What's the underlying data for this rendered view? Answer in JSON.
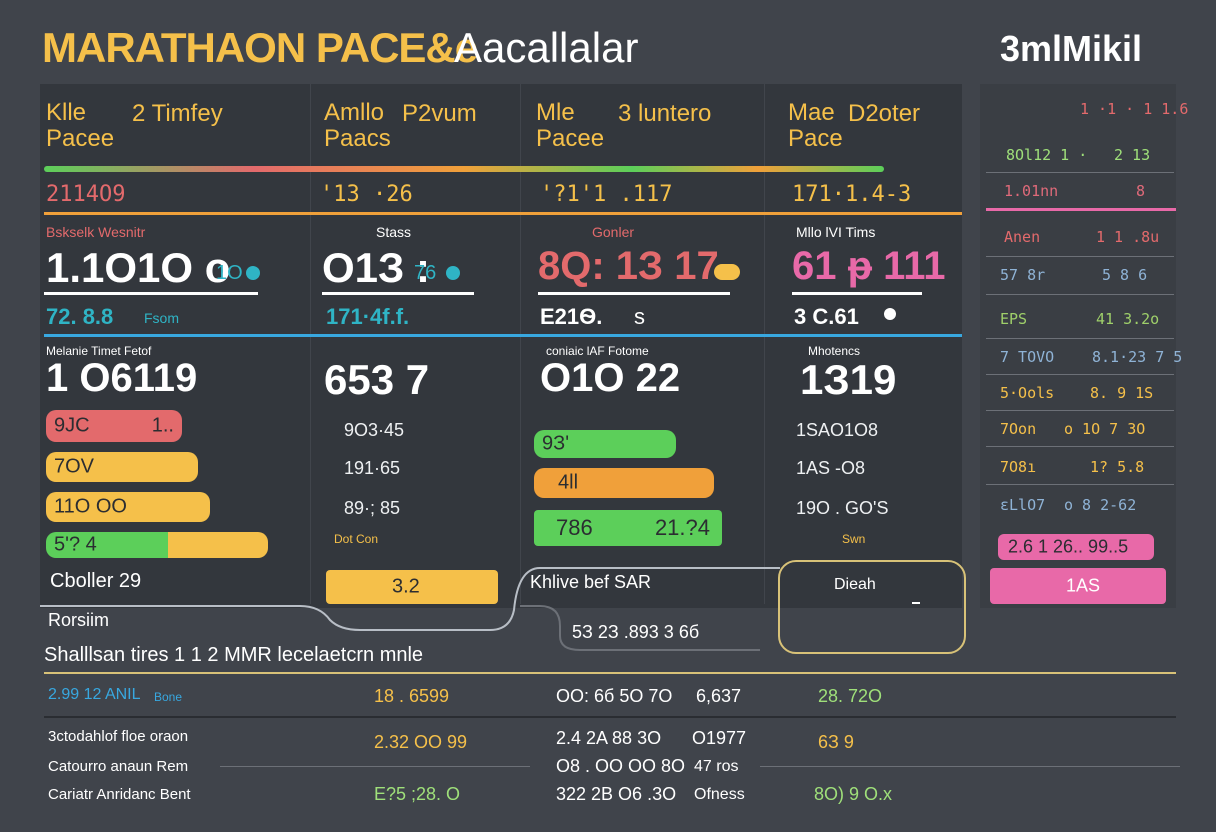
{
  "header": {
    "title_a": "MARATHAON PACE&e",
    "title_b": "Aacallalar",
    "title_right": "3mlMikil"
  },
  "colors": {
    "bg": "#40444b",
    "panel": "#33373d",
    "yellow": "#f5c04a",
    "orange": "#f0a03a",
    "green": "#5ccf5a",
    "red": "#e36a6c",
    "pink": "#e869a8",
    "blue": "#38a8e0",
    "cyan": "#2fb4c5"
  },
  "columns": [
    {
      "label": "Klle\nPacee",
      "sub": "2 Timfey",
      "value": "2114O9",
      "stat_label": "Bskselk Wesnitr",
      "big": "1.1O1O o",
      "dot": "1O",
      "detail": "72. 8.8",
      "detail_unit": "Fsom"
    },
    {
      "label": "Amllo\nPaacs",
      "sub": "P2vum",
      "value": "'1З ·26",
      "stat_label": "Stass",
      "big": "O1З :",
      "dot": "76",
      "detail": "171·4f.f.",
      "detail_unit": ""
    },
    {
      "label": "Mle\nPacee",
      "sub": "3 luntero",
      "value": "'?1'1 .117",
      "stat_label": "Gonler",
      "big": "8Q: 1З 17",
      "dot": "",
      "detail": "E21Ѳ.",
      "detail_unit": "s"
    },
    {
      "label": "Mae\nPace",
      "sub": "D2oter",
      "value": "171·1.4-3",
      "stat_label": "Mllo lVI Tims",
      "big": "61 ᵽ 111",
      "dot": "",
      "detail": "3 C.61",
      "detail_unit": ""
    }
  ],
  "section2": {
    "col1_label": "Melanie Timet Fetof",
    "col1_big": "1 O6119",
    "col1_bars": [
      "9JC",
      "1..",
      "7OV",
      "11O OO",
      "5'? 4"
    ],
    "col1_footer": "Cboller  29",
    "col1_footer2": "Rorsiim",
    "col2_big": "653 7",
    "col2_rows": [
      "9O3·45",
      "191·65",
      "89·; 85"
    ],
    "col2_small": "Dot Con",
    "col2_bar": "3.2",
    "col3_label": "coniaic lAF Fotome",
    "col3_big": "O1O 22",
    "col3_bars": [
      "9З'",
      "4ll",
      "786",
      "21.?4"
    ],
    "col3_footer": "Khlive bef SAR",
    "col3_footer2": "5З  2З .893  3 6б",
    "col4_label": "Mhotencs",
    "col4_big": "1З19",
    "col4_rows": [
      "1SAO1O8",
      "1AS -O8",
      "19O . GO'S"
    ],
    "col4_small": "Swn",
    "col4_box": "Dieah"
  },
  "sidebar": {
    "header": "1 ·1 · 1 1.6",
    "rows": [
      {
        "k": "8Ol12 1 ·",
        "v": "2 1З",
        "c": "#9fe07a"
      },
      {
        "k": "1.01nn",
        "v": "8",
        "c": "#e06a7a"
      },
      {
        "k": "Anen",
        "v": "1  1 .8u",
        "c": "#e36a6c"
      },
      {
        "k": "57 8r",
        "v": "5 8 6",
        "c": "#8fb3d6"
      },
      {
        "k": "EPS",
        "v": "41  3.2o",
        "c": "#9fd06a"
      },
      {
        "k": "7 TOVO",
        "v": "8.1·23 7 5",
        "c": "#8fb3d6"
      },
      {
        "k": "5·Ools",
        "v": "8.  9  1S",
        "c": "#f5c04a"
      },
      {
        "k": "7Oon",
        "v": "o  1O  7 3O",
        "c": "#f5c04a"
      },
      {
        "k": "7O8ı",
        "v": "1?  5.8",
        "c": "#f5c04a"
      },
      {
        "k": "ɛLlO7",
        "v": "o  8   2-62",
        "c": "#8fb3d6"
      }
    ],
    "pink_row": "2.6  1 26.. 99..5",
    "pink_btn": "1АS"
  },
  "summary": {
    "heading": "Shalllsan tires  1 1  2 MMR lecelaetcrn mnle",
    "rows": [
      {
        "a": "2.99  12 ANIL",
        "a2": "Bone",
        "b": "18 . 6599",
        "c": "OO: 6б  5O 7O",
        "d": "6,637",
        "e": "28. 72O"
      },
      {
        "a": "3ctodahlof floe oraon",
        "a2": "",
        "b": "2.32  OO 99",
        "c": "2.4  2A  88  3O",
        "d": "O1977",
        "e": "6З 9"
      },
      {
        "a": "Catourro anaun Rem",
        "a2": "",
        "b": "",
        "c": "O8 . OO  OO  8O",
        "d": "47 ros",
        "e": ""
      },
      {
        "a": "Cariatr Anridanc Bent",
        "a2": "",
        "b": "E?5 ;28. O",
        "c": "322 2B  O6 .3O",
        "d": "Ofness",
        "e": "8O) 9 O.x"
      }
    ]
  }
}
